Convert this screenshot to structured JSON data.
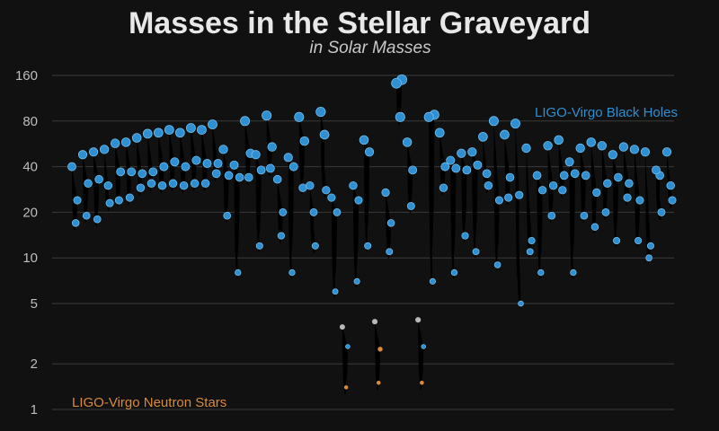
{
  "chart_data": {
    "type": "scatter",
    "title": "Masses in the Stellar Graveyard",
    "subtitle": "in Solar Masses",
    "yscale": "log",
    "ylim": [
      0.9,
      190
    ],
    "yticks": [
      1,
      2,
      5,
      10,
      20,
      40,
      80,
      160
    ],
    "grid": true,
    "series": [
      {
        "name": "LIGO-Virgo Black Holes",
        "color": "#2f8fd0"
      },
      {
        "name": "LIGO-Virgo Neutron Stars",
        "color": "#d98a3a"
      }
    ],
    "mergers": [
      {
        "a": 24,
        "b": 17,
        "f": 40,
        "ac": "bh",
        "bc": "bh"
      },
      {
        "a": 31,
        "b": 19,
        "f": 48,
        "ac": "bh",
        "bc": "bh"
      },
      {
        "a": 33,
        "b": 18,
        "f": 50,
        "ac": "bh",
        "bc": "bh"
      },
      {
        "a": 23,
        "b": 30,
        "f": 52,
        "ac": "bh",
        "bc": "bh"
      },
      {
        "a": 37,
        "b": 24,
        "f": 57,
        "ac": "bh",
        "bc": "bh"
      },
      {
        "a": 37,
        "b": 25,
        "f": 58,
        "ac": "bh",
        "bc": "bh"
      },
      {
        "a": 36,
        "b": 29,
        "f": 62,
        "ac": "bh",
        "bc": "bh"
      },
      {
        "a": 37,
        "b": 31,
        "f": 66,
        "ac": "bh",
        "bc": "bh"
      },
      {
        "a": 40,
        "b": 30,
        "f": 67,
        "ac": "bh",
        "bc": "bh"
      },
      {
        "a": 43,
        "b": 31,
        "f": 70,
        "ac": "bh",
        "bc": "bh"
      },
      {
        "a": 40,
        "b": 30,
        "f": 67,
        "ac": "bh",
        "bc": "bh"
      },
      {
        "a": 44,
        "b": 31,
        "f": 72,
        "ac": "bh",
        "bc": "bh"
      },
      {
        "a": 42,
        "b": 31,
        "f": 70,
        "ac": "bh",
        "bc": "bh"
      },
      {
        "a": 42,
        "b": 36,
        "f": 76,
        "ac": "bh",
        "bc": "bh"
      },
      {
        "a": 35,
        "b": 19,
        "f": 52,
        "ac": "bh",
        "bc": "bh"
      },
      {
        "a": 34,
        "b": 8,
        "f": 41,
        "ac": "bh",
        "bc": "bh"
      },
      {
        "a": 49,
        "b": 34,
        "f": 80,
        "ac": "bh",
        "bc": "bh"
      },
      {
        "a": 38,
        "b": 12,
        "f": 48,
        "ac": "bh",
        "bc": "bh"
      },
      {
        "a": 54,
        "b": 39,
        "f": 87,
        "ac": "bh",
        "bc": "bh"
      },
      {
        "a": 20,
        "b": 14,
        "f": 33,
        "ac": "bh",
        "bc": "bh"
      },
      {
        "a": 40,
        "b": 8,
        "f": 46,
        "ac": "bh",
        "bc": "bh"
      },
      {
        "a": 59,
        "b": 29,
        "f": 85,
        "ac": "bh",
        "bc": "bh"
      },
      {
        "a": 12,
        "b": 20,
        "f": 30,
        "ac": "bh",
        "bc": "bh"
      },
      {
        "a": 28,
        "b": 65,
        "f": 92,
        "ac": "bh",
        "bc": "bh"
      },
      {
        "a": 20,
        "b": 6,
        "f": 25,
        "ac": "bh",
        "bc": "bh"
      },
      {
        "a": 2.6,
        "b": 1.4,
        "f": 3.5,
        "ac": "bh",
        "bc": "ns"
      },
      {
        "a": 24,
        "b": 7,
        "f": 30,
        "ac": "bh",
        "bc": "bh"
      },
      {
        "a": 50,
        "b": 12,
        "f": 60,
        "ac": "bh",
        "bc": "bh"
      },
      {
        "a": 2.5,
        "b": 1.5,
        "f": 3.8,
        "ac": "ns",
        "bc": "ns"
      },
      {
        "a": 17,
        "b": 11,
        "f": 27,
        "ac": "bh",
        "bc": "bh"
      },
      {
        "a": 150,
        "b": 85,
        "f": 142,
        "ac": "bh",
        "bc": "bh"
      },
      {
        "a": 38,
        "b": 22,
        "f": 58,
        "ac": "bh",
        "bc": "bh"
      },
      {
        "a": 2.6,
        "b": 1.5,
        "f": 3.9,
        "ac": "bh",
        "bc": "ns"
      },
      {
        "a": 88,
        "b": 7,
        "f": 85,
        "ac": "bh",
        "bc": "bh"
      },
      {
        "a": 40,
        "b": 29,
        "f": 67,
        "ac": "bh",
        "bc": "bh"
      },
      {
        "a": 39,
        "b": 8,
        "f": 44,
        "ac": "bh",
        "bc": "bh"
      },
      {
        "a": 38,
        "b": 14,
        "f": 49,
        "ac": "bh",
        "bc": "bh"
      },
      {
        "a": 41,
        "b": 11,
        "f": 50,
        "ac": "bh",
        "bc": "bh"
      },
      {
        "a": 30,
        "b": 36,
        "f": 63,
        "ac": "bh",
        "bc": "bh"
      },
      {
        "a": 24,
        "b": 9,
        "f": 80,
        "ac": "bh",
        "bc": "bh"
      },
      {
        "a": 34,
        "b": 25,
        "f": 65,
        "ac": "bh",
        "bc": "bh"
      },
      {
        "a": 5,
        "b": 26,
        "f": 77,
        "ac": "bh",
        "bc": "bh"
      },
      {
        "a": 13,
        "b": 11,
        "f": 53,
        "ac": "bh",
        "bc": "bh"
      },
      {
        "a": 28,
        "b": 8,
        "f": 35,
        "ac": "bh",
        "bc": "bh"
      },
      {
        "a": 30,
        "b": 19,
        "f": 55,
        "ac": "bh",
        "bc": "bh"
      },
      {
        "a": 35,
        "b": 28,
        "f": 60,
        "ac": "bh",
        "bc": "bh"
      },
      {
        "a": 36,
        "b": 8,
        "f": 43,
        "ac": "bh",
        "bc": "bh"
      },
      {
        "a": 35,
        "b": 19,
        "f": 53,
        "ac": "bh",
        "bc": "bh"
      },
      {
        "a": 27,
        "b": 16,
        "f": 58,
        "ac": "bh",
        "bc": "bh"
      },
      {
        "a": 31,
        "b": 20,
        "f": 55,
        "ac": "bh",
        "bc": "bh"
      },
      {
        "a": 34,
        "b": 13,
        "f": 48,
        "ac": "bh",
        "bc": "bh"
      },
      {
        "a": 31,
        "b": 25,
        "f": 54,
        "ac": "bh",
        "bc": "bh"
      },
      {
        "a": 24,
        "b": 13,
        "f": 52,
        "ac": "bh",
        "bc": "bh"
      },
      {
        "a": 12,
        "b": 10,
        "f": 50,
        "ac": "bh",
        "bc": "bh"
      },
      {
        "a": 20,
        "b": 35,
        "f": 38,
        "ac": "bh",
        "bc": "bh"
      },
      {
        "a": 24,
        "b": 30,
        "f": 50,
        "ac": "bh",
        "bc": "bh"
      }
    ]
  },
  "legend": {
    "black_holes": "LIGO-Virgo Black Holes",
    "neutron_stars": "LIGO-Virgo Neutron Stars"
  }
}
